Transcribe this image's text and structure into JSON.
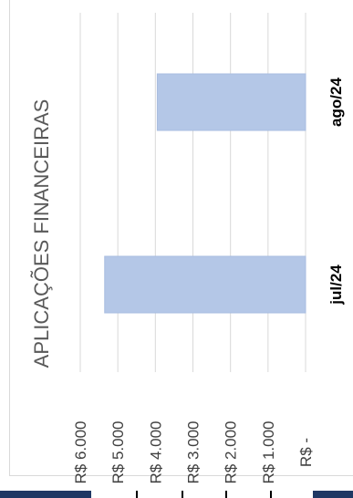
{
  "chart_data": {
    "type": "bar",
    "orientation": "horizontal",
    "title": "APLICAÇÕES FINANCEIRAS",
    "categories": [
      "jul/24",
      "ago/24"
    ],
    "values": [
      5350,
      3950
    ],
    "xlim": [
      0,
      6000
    ],
    "ticks": [
      6000,
      5000,
      4000,
      3000,
      2000,
      1000,
      0
    ],
    "tick_labels": [
      "R$ 6.000",
      "R$ 5.000",
      "R$ 4.000",
      "R$ 3.000",
      "R$ 2.000",
      "R$ 1.000",
      "R$ -"
    ],
    "grid": true,
    "bar_color": "#b4c7e7",
    "grid_color": "#d9d9d9",
    "text_color": "#404040"
  }
}
